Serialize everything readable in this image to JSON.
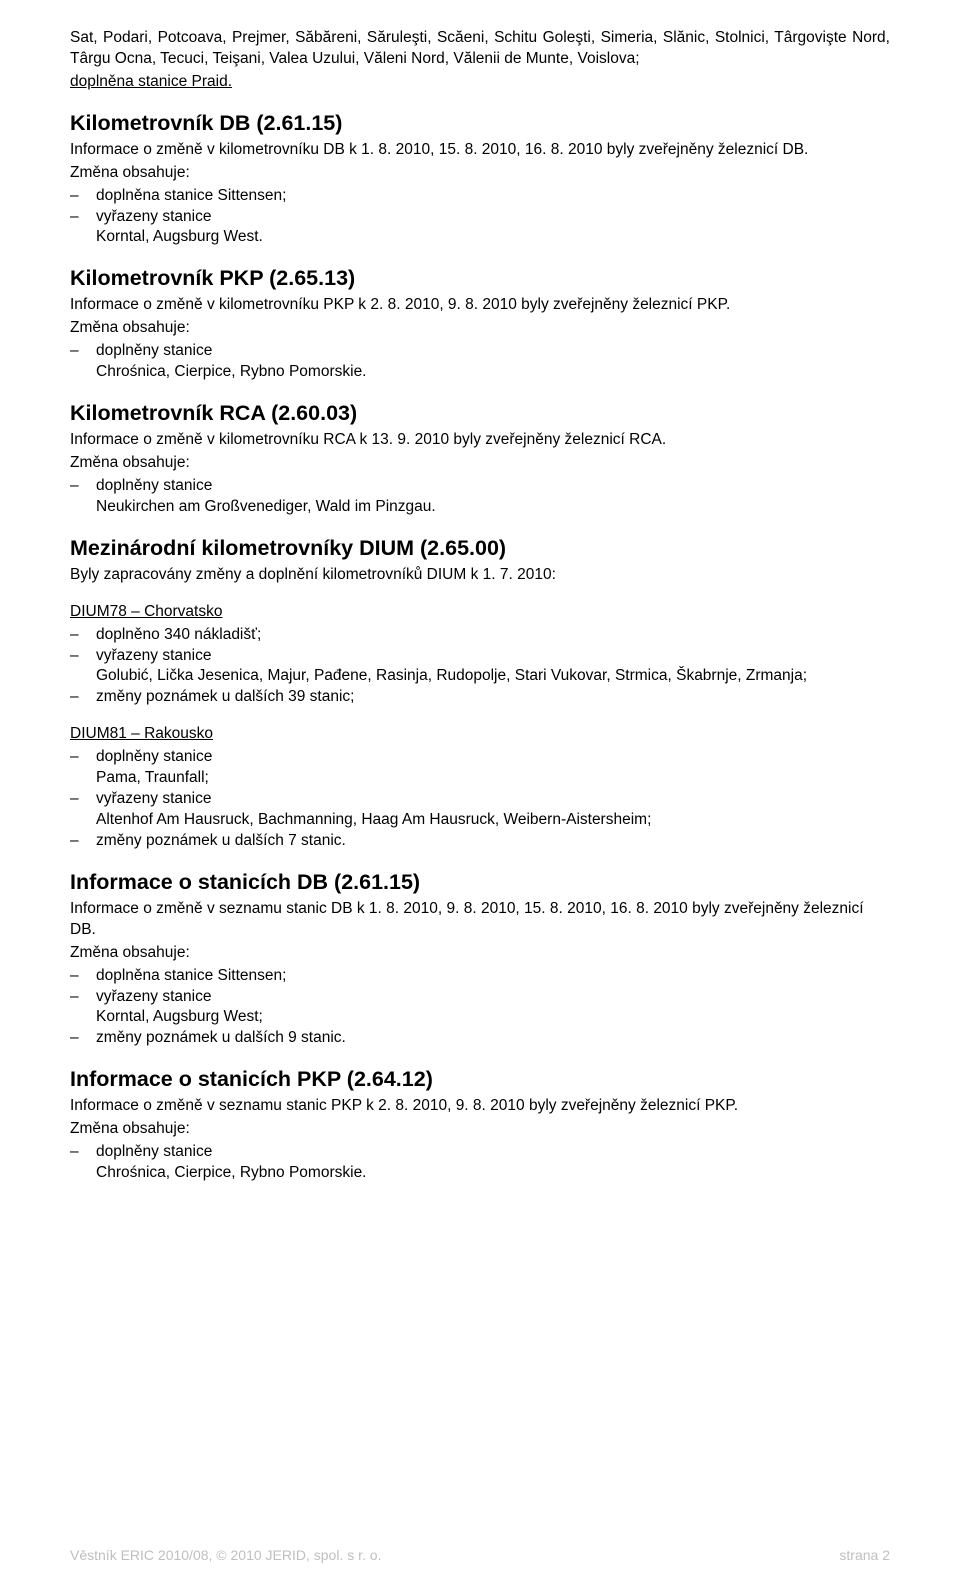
{
  "intro": {
    "line1": "Sat, Podari, Potcoava, Prejmer, Săbăreni, Săruleşti, Scăeni, Schitu Goleşti, Simeria, Slănic, Stolnici, Târgovişte Nord, Târgu Ocna, Tecuci, Teişani, Valea Uzului, Văleni Nord, Vălenii de Munte, Voislova;",
    "line2": "doplněna stanice Praid."
  },
  "sections": [
    {
      "heading": "Kilometrovník DB (2.61.15)",
      "desc": "Informace o změně v kilometrovníku DB k 1. 8. 2010, 15. 8. 2010, 16. 8. 2010 byly zveřejněny železnicí DB.",
      "zmena": "Změna obsahuje:",
      "items": [
        "doplněna stanice Sittensen;",
        "vyřazeny stanice\nKorntal, Augsburg West."
      ]
    },
    {
      "heading": "Kilometrovník PKP (2.65.13)",
      "desc": "Informace o změně v kilometrovníku PKP k 2. 8. 2010, 9. 8. 2010 byly zveřejněny železnicí PKP.",
      "zmena": "Změna obsahuje:",
      "items": [
        "doplněny stanice\nChrośnica, Cierpice, Rybno Pomorskie."
      ]
    },
    {
      "heading": "Kilometrovník RCA (2.60.03)",
      "desc": "Informace o změně v kilometrovníku RCA k 13. 9. 2010 byly zveřejněny železnicí RCA.",
      "zmena": "Změna obsahuje:",
      "items": [
        "doplněny stanice\nNeukirchen am Großvenediger, Wald im Pinzgau."
      ]
    },
    {
      "heading": "Mezinárodní kilometrovníky DIUM (2.65.00)",
      "desc": "Byly zapracovány změny a doplnění kilometrovníků DIUM k 1. 7. 2010:",
      "groups": [
        {
          "title": "DIUM78 – Chorvatsko",
          "items": [
            "doplněno 340 nákladišť;",
            "vyřazeny stanice\nGolubić, Lička Jesenica, Majur, Pađene, Rasinja, Rudopolje, Stari Vukovar, Strmica, Škabrnje, Zrmanja;",
            "změny poznámek u dalších 39 stanic;"
          ]
        },
        {
          "title": "DIUM81 – Rakousko",
          "items": [
            "doplněny stanice\nPama, Traunfall;",
            "vyřazeny stanice\nAltenhof Am Hausruck, Bachmanning, Haag Am Hausruck, Weibern-Aistersheim;",
            "změny poznámek u dalších 7 stanic."
          ]
        }
      ]
    },
    {
      "heading": "Informace o stanicích DB (2.61.15)",
      "desc": "Informace o změně v seznamu stanic DB k 1. 8. 2010, 9. 8. 2010, 15. 8. 2010, 16. 8. 2010 byly zveřejněny železnicí DB.",
      "zmena": "Změna obsahuje:",
      "items": [
        "doplněna stanice Sittensen;",
        "vyřazeny stanice\nKorntal, Augsburg West;",
        "změny poznámek u dalších 9 stanic."
      ]
    },
    {
      "heading": "Informace o stanicích PKP (2.64.12)",
      "desc": "Informace o změně v seznamu stanic PKP k 2. 8. 2010, 9. 8. 2010 byly zveřejněny železnicí PKP.",
      "zmena": "Změna obsahuje:",
      "items": [
        "doplněny stanice\nChrośnica, Cierpice, Rybno Pomorskie."
      ]
    }
  ],
  "footer": {
    "left": "Věstník ERIC 2010/08, © 2010 JERID, spol. s r. o.",
    "right": "strana 2"
  }
}
